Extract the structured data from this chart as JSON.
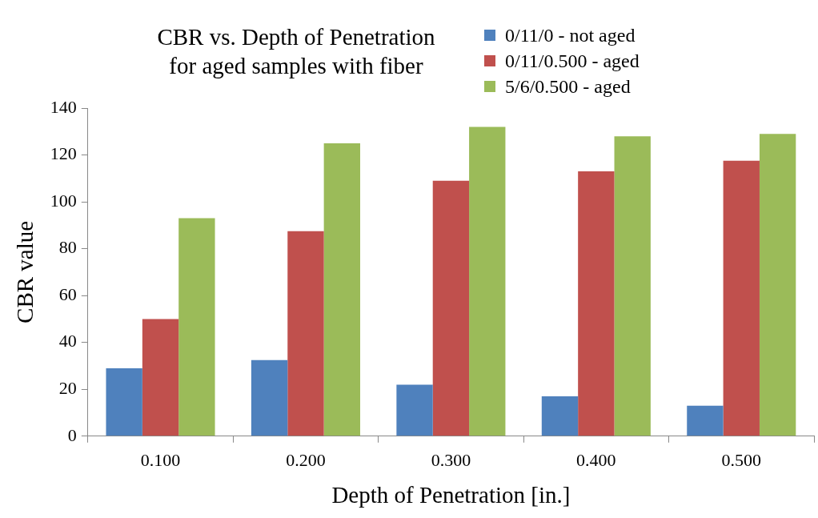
{
  "chart_data": {
    "type": "bar",
    "title": "CBR vs. Depth of Penetration\nfor aged samples with fiber",
    "xlabel": "Depth of Penetration [in.]",
    "ylabel": "CBR value",
    "categories": [
      "0.100",
      "0.200",
      "0.300",
      "0.400",
      "0.500"
    ],
    "series": [
      {
        "name": "0/11/0 - not aged",
        "color": "#4f81bd",
        "values": [
          29,
          32.5,
          22,
          17,
          13
        ]
      },
      {
        "name": "0/11/0.500 - aged",
        "color": "#c0504d",
        "values": [
          50,
          87.5,
          109,
          113,
          117.5
        ]
      },
      {
        "name": "5/6/0.500 - aged",
        "color": "#9bbb59",
        "values": [
          93,
          125,
          132,
          128,
          129
        ]
      }
    ],
    "ylim": [
      0,
      140
    ],
    "yticks": [
      0,
      20,
      40,
      60,
      80,
      100,
      120,
      140
    ],
    "grid": false,
    "legend": "top right"
  }
}
